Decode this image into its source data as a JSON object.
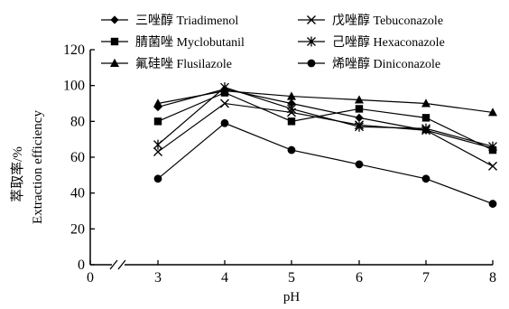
{
  "chart_data": {
    "type": "line",
    "xlabel": "pH",
    "ylabel_lines": [
      "萃取率/%",
      "Extraction efficiency"
    ],
    "x_ticks": [
      0,
      3,
      4,
      5,
      6,
      7,
      8
    ],
    "x_broken_axis": true,
    "y_ticks": [
      0,
      20,
      40,
      60,
      80,
      100,
      120
    ],
    "ylim": [
      0,
      120
    ],
    "legend_position": "top",
    "x": [
      3,
      4,
      5,
      6,
      7,
      8
    ],
    "series": [
      {
        "name": "三唑醇 Triadimenol",
        "marker": "diamond",
        "values": [
          88,
          98,
          90,
          82,
          75,
          65
        ]
      },
      {
        "name": "戊唑醇 Tebuconazole",
        "marker": "x",
        "values": [
          63,
          90,
          85,
          78,
          75,
          55
        ]
      },
      {
        "name": "腈菌唑 Myclobutanil",
        "marker": "square",
        "values": [
          80,
          96,
          80,
          87,
          82,
          64
        ]
      },
      {
        "name": "己唑醇 Hexaconazole",
        "marker": "asterisk",
        "values": [
          67,
          99,
          87,
          77,
          76,
          66
        ]
      },
      {
        "name": "氟硅唑 Flusilazole",
        "marker": "triangle",
        "values": [
          90,
          97,
          94,
          92,
          90,
          85
        ]
      },
      {
        "name": "烯唑醇 Diniconazole",
        "marker": "circle",
        "values": [
          48,
          79,
          64,
          56,
          48,
          34
        ]
      }
    ]
  }
}
